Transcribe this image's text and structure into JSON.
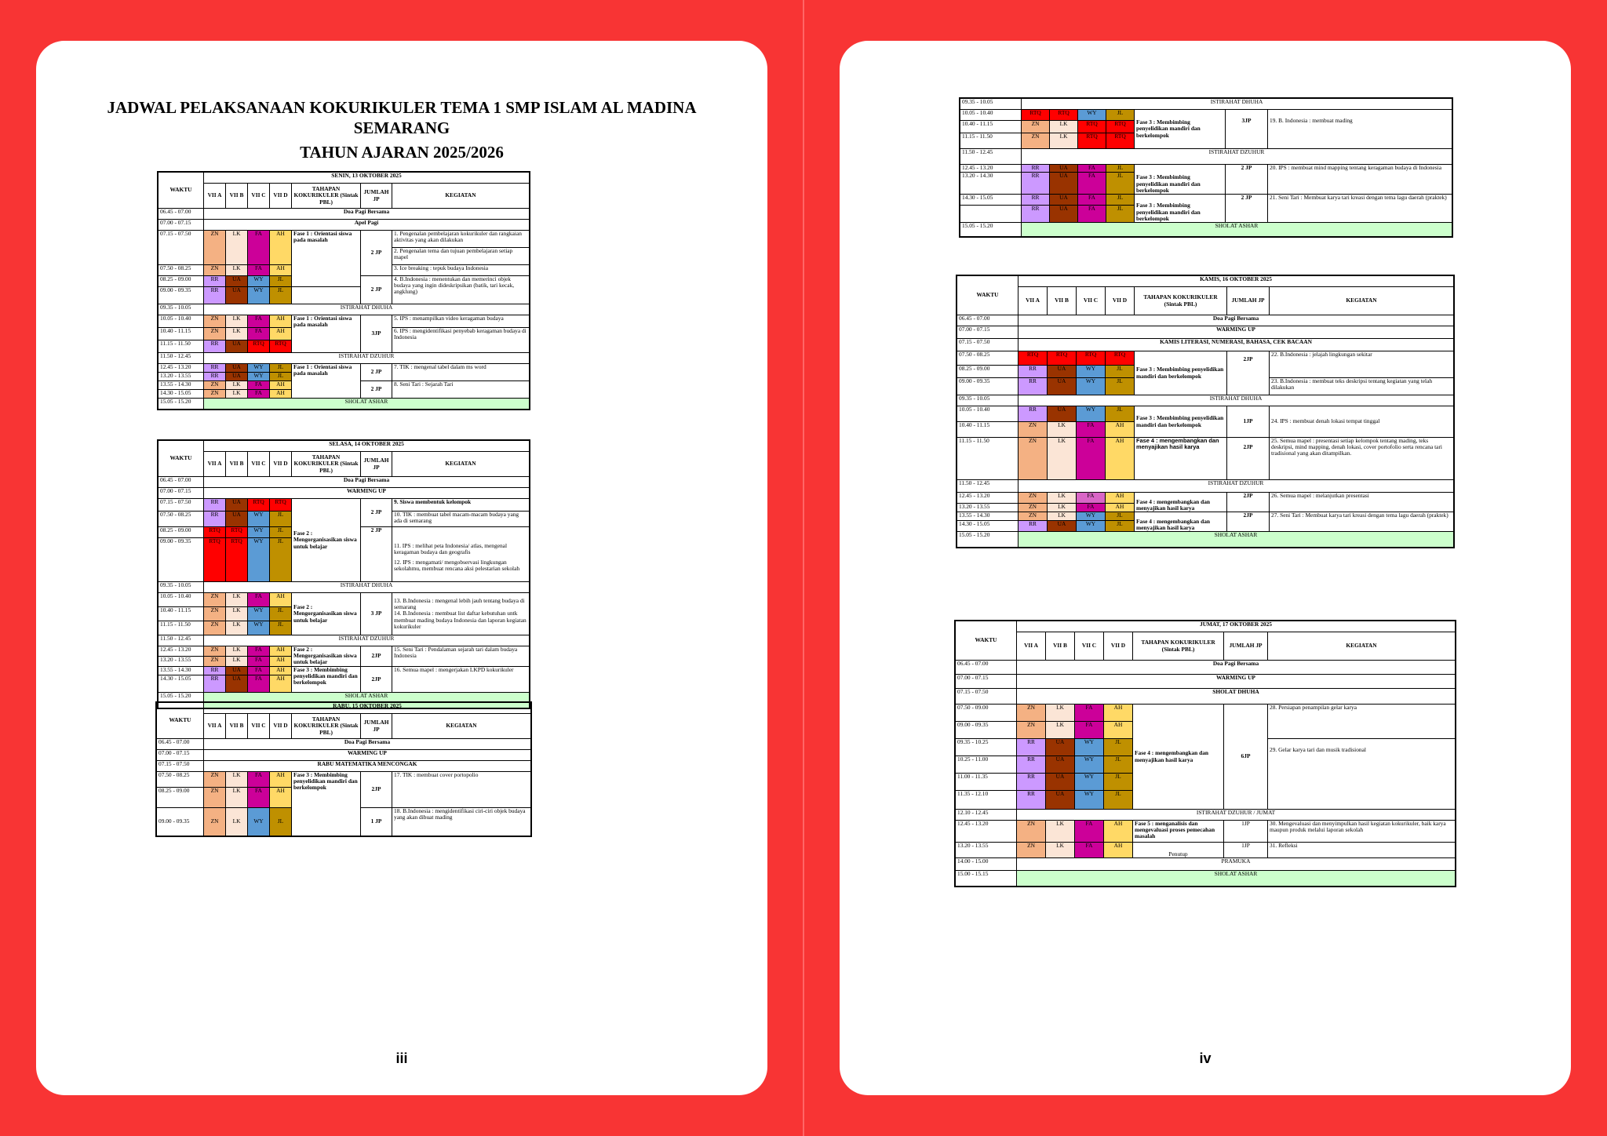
{
  "left_page": {
    "title_line1": "JADWAL PELAKSANAAN KOKURIKULER TEMA 1  SMP ISLAM AL MADINA SEMARANG",
    "title_line2": "TAHUN AJARAN 2025/2026",
    "page_number": "iii"
  },
  "right_page": {
    "page_number": "iv"
  },
  "headers": {
    "waktu": "WAKTU",
    "c1": "VII A",
    "c2": "VII B",
    "c3": "VII C",
    "c4": "VII D",
    "tahapan": "TAHAPAN KOKURIKULER (Sintak PBL)",
    "jumlah": "JUMLAH JP",
    "jumlah_jumat": "JUMLAH JP",
    "kegiatan": "KEGIATAN"
  },
  "colors": {
    "ZN": "#f4b183",
    "LK": "#fbe5d6",
    "FA": "#cc0099",
    "AH": "#ffd966",
    "RR": "#cc99ff",
    "UA": "#993300",
    "WY": "#5b9bd5",
    "JL": "#bf9000",
    "RTQ": "#ff0000",
    "green": "#ccffcc",
    "background": "#f83434"
  },
  "senin": {
    "day": "SENIN, 13 OKTOBER 2025",
    "t1": "06.45 - 07.00",
    "doa": "Doa Pagi Bersama",
    "t2": "07.00 - 07.15",
    "apel": "Apel Pagi",
    "t3": "07.15 - 07.50",
    "t4": "07.50 - 08.25",
    "t5": "08.25 - 09.00",
    "t6": "09.00 - 09.35",
    "fase1": "Fase 1 : Orientasi siswa pada masalah",
    "jp2": "2 JP",
    "jp2b": "2 JP",
    "k1": "1. Pengenalan pembelajaran kokurikuler dan rangkaian aktivitas yang akan dilakukan",
    "k2": "2. Pengenalan tema dan tujuan pembelajaran setiap mapel",
    "k3": "3. Ice breaking :  tepuk budaya Indonesia",
    "k4": "4. B.Indonesia :  menentukan dan memerinci objek budaya yang ingin dideskripsikan (batik, tari kecak, angklung)",
    "t7": "09.35 - 10.05",
    "istirahat": "ISTIRAHAT DHUHA",
    "t8": "10.05 - 10.40",
    "t9": "10.40 - 11.15",
    "t10": "11.15 - 11.50",
    "fase1b": "Fase 1 : Orientasi siswa pada masalah",
    "jp3": "3JP",
    "k5": "5. IPS : menampilkan video keragaman budaya",
    "k6": "6. IPS : mengidentifikasi penyebab keragaman budaya di Indonesia",
    "t11": "11.50 - 12.45",
    "dzuhur": "ISTIRAHAT DZUHUR",
    "t12": "12.45 - 13.20",
    "t13": "13.20 - 13.55",
    "t14": "13.55 - 14.30",
    "t15": "14.30 - 15.05",
    "fase1c": "Fase 1 : Orientasi siswa pada masalah",
    "jp2c": "2 JP",
    "jp2d": "2 JP",
    "k7": "7. TIK : mengenal tabel dalam ms word",
    "k8": "8. Seni Tari :  Sejarah Tari",
    "t16": "15.05 - 15.20",
    "ashar": "SHOLAT ASHAR"
  },
  "selasa": {
    "day": "SELASA, 14 OKTOBER 2025",
    "t1": "06.45 - 07.00",
    "doa": "Doa Pagi Bersama",
    "t2": "07.00 - 07.15",
    "warming": "WARMING UP",
    "t3": "07.15 - 07.50",
    "t4": "07.50 - 08.25",
    "t5": "08.25 - 09.00",
    "t6": "09.00 - 09.35",
    "fase2": "Fase 2 : Mengorganisasikan siswa untuk belajar",
    "jp2": "2 JP",
    "jp2b": "2 JP",
    "k9": "9. Siswa membentuk kelompok",
    "k10": "10.  TIK : membuat tabel macam-macam budaya yang ada di semarang",
    "k11": "11. IPS :  melihat peta Indonesia/ atlas, mengenal keragaman budaya  dan geografis",
    "k12": "12. IPS :  mengamati/ mengobservasi lingkungan sekolahmu, membuat  rencana aksi pelestarian sekolah",
    "t7": "09.35 - 10.05",
    "istirahat": "ISTIRAHAT DHUHA",
    "t8": "10.05 - 10.40",
    "t9": "10.40 - 11.15",
    "t10": "11.15 - 11.50",
    "fase2b": "Fase 2 : Mengorganisasikan siswa untuk belajar",
    "jp3": "3 JP",
    "k13": "13.  B.Indonesia : mengenal lebih jauh tentang budaya  di semarang",
    "k14": "14.  B.Indonesia : membuat list daftar kebutuhan untk membuat mading budaya Indonesia dan laporan kegiatan kokurikuler",
    "t11": "11.50 - 12.45",
    "dzuhur": "ISTIRAHAT DZUHUR",
    "t12": "12.45 - 13.20",
    "t13": "13.20 - 13.55",
    "t14": "13.55 - 14.30",
    "t15": "14.30 - 15.05",
    "fase2c": "Fase 2 : Mengorganisasikan siswa untuk belajar",
    "fase3": "Fase 3 : Membimbing penyelidikan mandiri dan berkelompok",
    "jp2c": "2JP",
    "jp2d": "2JP",
    "k15": "15. Seni Tari : Pendalaman sejarah tari dalam budaya Indonesia",
    "k16": "16. Semua mapel : mengerjakan  LKPD kokurikuler",
    "t16": "15.05 - 15.20",
    "ashar": "SHOLAT ASHAR"
  },
  "rabu": {
    "day": "RABU, 15 OKTOBER 2025",
    "t1": "06.45 - 07.00",
    "doa": "Doa Pagi Bersama",
    "t2": "07.00 - 07.15",
    "warming": "WARMING UP",
    "t3": "07.15 - 07.50",
    "rabu_mat": "RABU MATEMATIKA MENCONGAK",
    "t4": "07.50 - 08.25",
    "t5": "08.25 - 09.00",
    "t6": "09.00 - 09.35",
    "fase3": "Fase 3 : Membimbing penyelidikan mandiri dan berkelompok",
    "jp2": "2JP",
    "jp1": "1 JP",
    "k17": "17. TIK : membuat cover portopolio",
    "k18": "18. B.Indonesia : mengidentifikasi ciri-ciri objek budaya yang akan dibuat mading"
  },
  "rabu2": {
    "t7": "09.35 - 10.05",
    "istirahat": "ISTIRAHAT DHUHA",
    "t8": "10.05 - 10.40",
    "t9": "10.40 - 11.15",
    "t10": "11.15 - 11.50",
    "fase3": "Fase 3 : Membimbing penyelidikan mandiri dan berkelompok",
    "jp3": "3JP",
    "k19": "19. B. Indonesia : membuat mading",
    "t11": "11.50 - 12.45",
    "dzuhur": "ISTIRAHAT DZUHUR",
    "t12": "12.45 - 13.20",
    "t13": "13.20 - 14.30",
    "fase3b": "Fase 3 : Membimbing penyelidikan mandiri dan berkelompok",
    "jp2": "2 JP",
    "k20": "20. IPS : membuat mind mapping tentang keragaman budaya di Indonesia",
    "t14": "14.30 - 15.05",
    "fase3c": "Fase 3 : Membimbing penyelidikan mandiri dan berkelompok",
    "jp2b": "2 JP",
    "k21": "21. Seni Tari :     Membuat karya tari kreasi dengan tema lagu daerah (praktek)",
    "t16": "15.05 - 15.20",
    "ashar": "SHOLAT ASHAR"
  },
  "kamis": {
    "day": "KAMIS, 16 OKTOBER 2025",
    "t1": "06.45 - 07.00",
    "doa": "Doa Pagi Bersama",
    "t2": "07.00 - 07.15",
    "warming": "WARMING UP",
    "t3": "07.15 - 07.50",
    "literasi": "KAMIS LITERASI, NUMERASI, BAHASA, CEK BACAAN",
    "t4": "07.50 - 08.25",
    "t5": "08.25 - 09.00",
    "t6": "09.00 - 09.35",
    "fase3": "Fase 3 : Membimbing penyelidikan mandiri dan berkelompok",
    "jp2": "2JP",
    "k22": "22.  B.Indonesia : jelajah lingkungan sekitar",
    "k23": "23.  B.Indonesia : membuat teks deskripsi tentang kegiatan yang telah dilakukan",
    "t7": "09.35 - 10.05",
    "istirahat": "ISTIRAHAT DHUHA",
    "t8": "10.05 - 10.40",
    "t9": "10.40 - 11.15",
    "fase3b": "Fase 3 : Membimbing penyelidikan mandiri dan berkelompok",
    "jp1": "1JP",
    "k24": "24. IPS : membuat denah lokasi tempat tinggal",
    "t10": "11.15 - 11.50",
    "fase4": "Fase 4 : mengembangkan dan menyajikan hasil karya",
    "jp2b": "2JP",
    "k25": "25. Semua mapel : presentasi setiap kelompok tentang  mading, teks deskripsi, mind mapping, denah lokasi, cover portofolio serta rencana tari tradisional yang akan ditampilkan.",
    "t11": "11.50 - 12.45",
    "dzuhur": "ISTIRAHAT DZUHUR",
    "t12": "12.45 - 13.20",
    "t13": "13.20 - 13.55",
    "fase4b": "Fase 4 : mengembangkan dan menyajikan hasil karya",
    "jp2c": "2JP",
    "k26": "26. Semua mapel : melanjutkan presentasi",
    "t14": "13.55 - 14.30",
    "t15": "14.30 - 15.05",
    "fase4c": "Fase 4 : mengembangkan dan menyajikan hasil karya",
    "jp2d": "2JP",
    "k27": "27. Seni Tari :     Membuat karya tari kreasi dengan tema lagu daerah (praktek)",
    "t16": "15.05 - 15.20",
    "ashar": "SHOLAT ASHAR"
  },
  "jumat": {
    "day": "JUMAT, 17 OKTOBER 2025",
    "t1": "06.45 - 07.00",
    "doa": "Doa Pagi Bersama",
    "t2": "07.00 - 07.15",
    "warming": "WARMING UP",
    "t3": "07.15 - 07.50",
    "dhuha": "SHOLAT DHUHA",
    "t4": "07.50 - 09.00",
    "t5": "09.00 - 09.35",
    "t6": "09.35 - 10.25",
    "t7": "10.25 - 11.00",
    "t8": "11.00 - 11.35",
    "t9": "11.35 - 12.10",
    "fase4": "Fase 4 : mengembangkan dan menyajikan hasil karya",
    "jp6": "6JP",
    "k28": "28. Persiapan penampilan gelar karya",
    "k29": "29. Gelar karya tari dan musik tradisional",
    "t10": "12.10 - 12.45",
    "dzuhur": "ISTIRAHAT DZUHUR / JUMAT",
    "t11": "12.45 - 13.20",
    "fase5": "Fase 5 : menganalisis dan mengevaluasi proses pemecahan masalah",
    "jp1": "1JP",
    "k30": "30. Mengevaluasi dan menyimpulkan hasil kegiatan kokurikuler, baik karya maupun produk melalui laporan sekolah",
    "t12": "13.20 - 13.55",
    "penutup": "Penutup",
    "jp1b": "1JP",
    "k31": "31. Refleksi",
    "t13": "14.00 - 15.00",
    "pramuka": "PRAMUKA",
    "t14": "15.00 - 15.15",
    "ashar": "SHOLAT ASHAR"
  }
}
